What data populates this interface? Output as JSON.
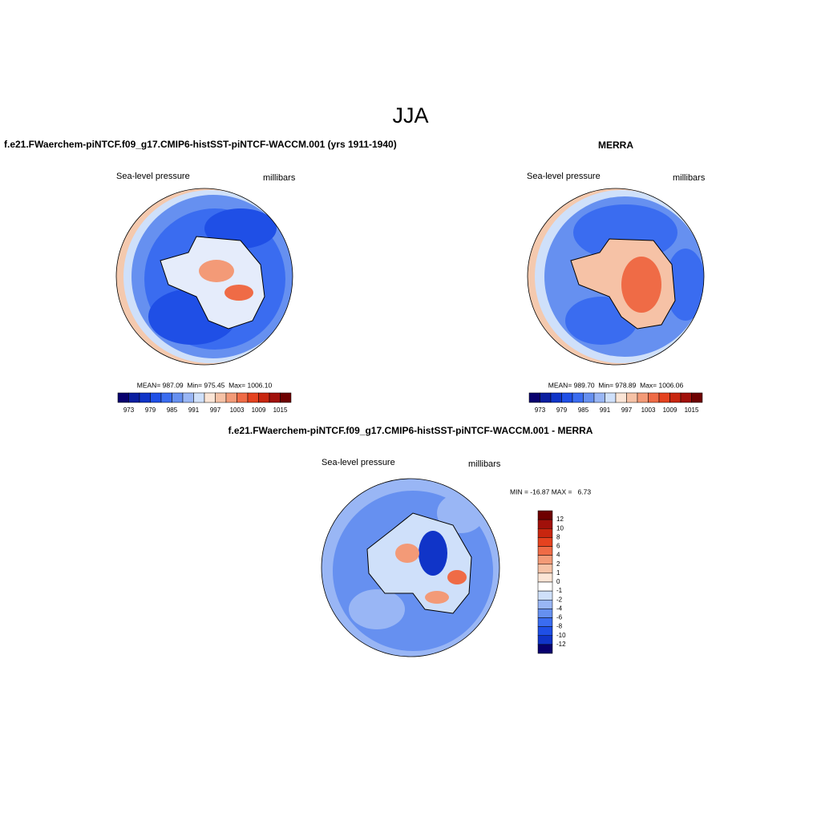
{
  "title": "JJA",
  "panels": [
    {
      "title": "f.e21.FWaerchem-piNTCF.f09_g17.CMIP6-histSST-piNTCF-WACCM.001 (yrs 1911-1940)",
      "left_label": "Sea-level pressure",
      "right_label": "millibars",
      "stats": "MEAN= 987.09  Min= 975.45  Max= 1006.10",
      "colorbar": {
        "labels": [
          973,
          979,
          985,
          991,
          997,
          1003,
          1009,
          1015
        ],
        "colors": [
          "#08006e",
          "#0a1ea0",
          "#1034c8",
          "#1f4fe6",
          "#3a6cf0",
          "#6690f0",
          "#99b6f5",
          "#cfe0fa",
          "#fbe5d6",
          "#f6c2a6",
          "#f39a77",
          "#ef6b46",
          "#e5421f",
          "#c8260f",
          "#a1100a",
          "#6e0000"
        ]
      }
    },
    {
      "title": "MERRA",
      "left_label": "Sea-level pressure",
      "right_label": "millibars",
      "stats": "MEAN= 989.70  Min= 978.89  Max= 1006.06",
      "colorbar": {
        "labels": [
          973,
          979,
          985,
          991,
          997,
          1003,
          1009,
          1015
        ],
        "colors": [
          "#08006e",
          "#0a1ea0",
          "#1034c8",
          "#1f4fe6",
          "#3a6cf0",
          "#6690f0",
          "#99b6f5",
          "#cfe0fa",
          "#fbe5d6",
          "#f6c2a6",
          "#f39a77",
          "#ef6b46",
          "#e5421f",
          "#c8260f",
          "#a1100a",
          "#6e0000"
        ]
      }
    },
    {
      "title": "f.e21.FWaerchem-piNTCF.f09_g17.CMIP6-histSST-piNTCF-WACCM.001 - MERRA",
      "left_label": "Sea-level pressure",
      "right_label": "millibars",
      "stats": "MIN = -16.87 MAX =   6.73",
      "colorbar": {
        "labels": [
          12,
          10,
          8,
          6,
          4,
          2,
          1,
          0,
          -1,
          -2,
          -4,
          -6,
          -8,
          -10,
          -12
        ],
        "colors": [
          "#6e0000",
          "#a1100a",
          "#c8260f",
          "#e5421f",
          "#ef6b46",
          "#f39a77",
          "#f6c2a6",
          "#fbe5d6",
          "#ffffff",
          "#cfe0fa",
          "#99b6f5",
          "#6690f0",
          "#3a6cf0",
          "#1f4fe6",
          "#1034c8",
          "#08006e"
        ]
      }
    }
  ]
}
